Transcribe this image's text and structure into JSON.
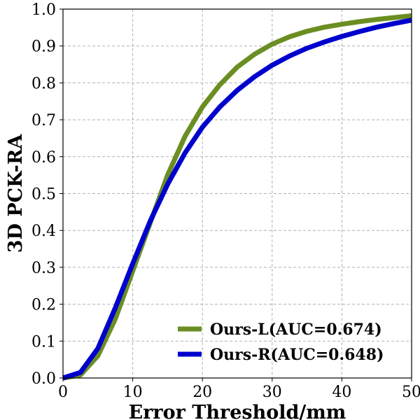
{
  "chart_data": {
    "type": "line",
    "xlabel": "Error Threshold/mm",
    "ylabel": "3D PCK-RA",
    "xlim": [
      0,
      50
    ],
    "ylim": [
      0,
      1.0
    ],
    "xticks": [
      "0",
      "10",
      "20",
      "30",
      "40",
      "50"
    ],
    "yticks": [
      "0.0",
      "0.1",
      "0.2",
      "0.3",
      "0.4",
      "0.5",
      "0.6",
      "0.7",
      "0.8",
      "0.9",
      "1.0"
    ],
    "grid": true,
    "legend_position": "lower-right",
    "series": [
      {
        "name": "Ours-L(AUC=0.674)",
        "color": "#6b8e23",
        "x": [
          0,
          2.5,
          5,
          7.5,
          10,
          12.5,
          15,
          17.5,
          20,
          22.5,
          25,
          27.5,
          30,
          32.5,
          35,
          37.5,
          40,
          42.5,
          45,
          47.5,
          50
        ],
        "y": [
          0.0,
          0.008,
          0.06,
          0.16,
          0.29,
          0.42,
          0.55,
          0.655,
          0.735,
          0.795,
          0.843,
          0.878,
          0.905,
          0.925,
          0.94,
          0.951,
          0.959,
          0.966,
          0.972,
          0.977,
          0.982
        ]
      },
      {
        "name": "Ours-R(AUC=0.648)",
        "color": "#0000cd",
        "x": [
          0,
          2.5,
          5,
          7.5,
          10,
          12.5,
          15,
          17.5,
          20,
          22.5,
          25,
          27.5,
          30,
          32.5,
          35,
          37.5,
          40,
          42.5,
          45,
          47.5,
          50
        ],
        "y": [
          0.0,
          0.015,
          0.08,
          0.19,
          0.31,
          0.425,
          0.525,
          0.61,
          0.68,
          0.735,
          0.78,
          0.817,
          0.848,
          0.873,
          0.894,
          0.911,
          0.926,
          0.939,
          0.951,
          0.961,
          0.97
        ]
      }
    ]
  }
}
